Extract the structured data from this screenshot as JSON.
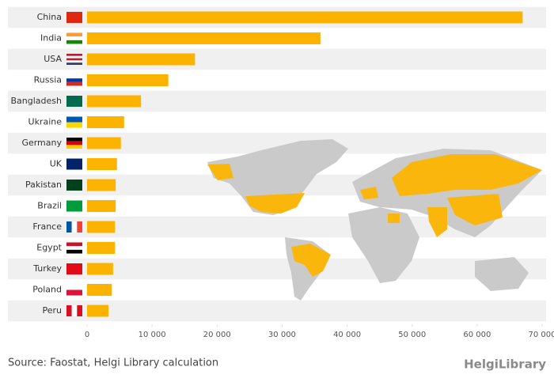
{
  "chart_data": {
    "type": "bar",
    "orientation": "horizontal",
    "categories": [
      "China",
      "India",
      "USA",
      "Russia",
      "Bangladesh",
      "Ukraine",
      "Germany",
      "UK",
      "Pakistan",
      "Brazil",
      "France",
      "Egypt",
      "Turkey",
      "Poland",
      "Peru"
    ],
    "values": [
      67000,
      35900,
      16600,
      12500,
      8300,
      5700,
      5200,
      4600,
      4400,
      4400,
      4300,
      4300,
      4000,
      3800,
      3300
    ],
    "color": "#fbb300",
    "xlim": [
      0,
      70000
    ],
    "xticks": [
      0,
      {
        "value": 10000,
        "label": "10 000"
      },
      {
        "value": 20000,
        "label": "20 000"
      },
      {
        "value": 30000,
        "label": "30 000"
      },
      {
        "value": 40000,
        "label": "40 000"
      },
      {
        "value": 50000,
        "label": "50 000"
      },
      {
        "value": 60000,
        "label": "60 000"
      },
      {
        "value": 70000,
        "label": "70 000"
      }
    ],
    "source": "Source: Faostat, Helgi Library calculation",
    "logo": "HelgiLibrary"
  }
}
